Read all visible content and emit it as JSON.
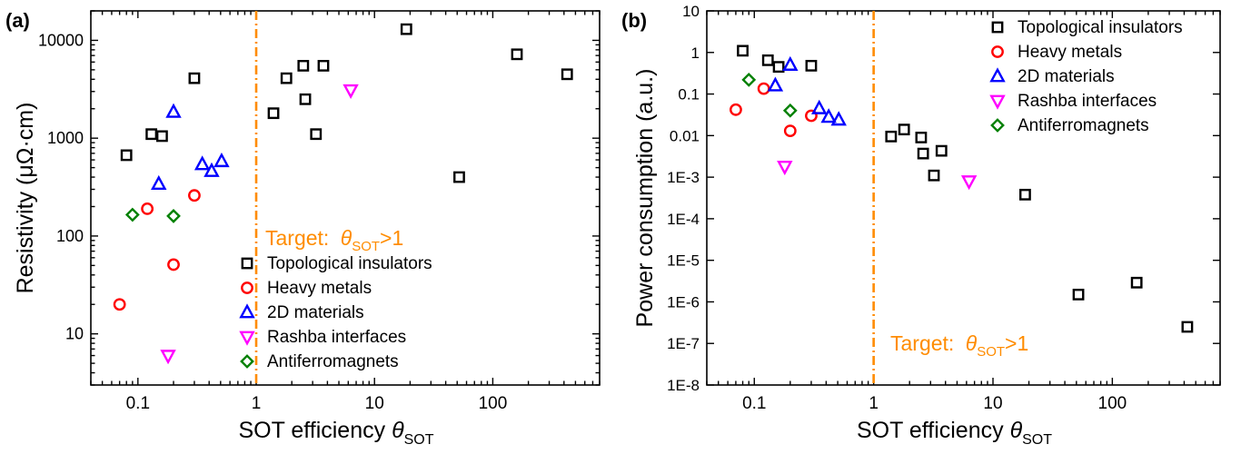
{
  "chart_data": [
    {
      "type": "scatter",
      "panel_label": "(a)",
      "xlabel": "SOT efficiency",
      "xlabel_symbol": "θ",
      "xlabel_subscript": "SOT",
      "ylabel": "Resistivity (μΩ·cm)",
      "xscale": "log",
      "yscale": "log",
      "xlim": [
        0.04,
        800
      ],
      "ylim": [
        3,
        20000
      ],
      "x_ticks": [
        0.1,
        1,
        10,
        100
      ],
      "x_tick_labels": [
        "0.1",
        "1",
        "10",
        "100"
      ],
      "y_ticks": [
        10,
        100,
        1000,
        10000
      ],
      "y_tick_labels": [
        "10",
        "100",
        "1000",
        "10000"
      ],
      "target_x": 1,
      "target_label": "Target: ",
      "target_symbol": "θ",
      "target_subscript": "SOT",
      "target_suffix": ">1",
      "legend_position": "bottom-right",
      "series": [
        {
          "name": "Topological insulators",
          "marker": "square",
          "color": "#000000",
          "points": [
            [
              0.08,
              670
            ],
            [
              0.13,
              1100
            ],
            [
              0.16,
              1050
            ],
            [
              0.3,
              4100
            ],
            [
              1.4,
              1800
            ],
            [
              1.8,
              4100
            ],
            [
              2.5,
              5500
            ],
            [
              2.6,
              2500
            ],
            [
              3.2,
              1100
            ],
            [
              3.7,
              5500
            ],
            [
              18.6,
              13000
            ],
            [
              52,
              400
            ],
            [
              160,
              7200
            ],
            [
              425,
              4500
            ]
          ]
        },
        {
          "name": "Heavy metals",
          "marker": "circle",
          "color": "#ff0000",
          "points": [
            [
              0.07,
              20
            ],
            [
              0.12,
              190
            ],
            [
              0.2,
              51
            ],
            [
              0.3,
              260
            ]
          ]
        },
        {
          "name": "2D materials",
          "marker": "triangle-up",
          "color": "#0000ff",
          "points": [
            [
              0.15,
              340
            ],
            [
              0.2,
              1850
            ],
            [
              0.35,
              540
            ],
            [
              0.42,
              460
            ],
            [
              0.51,
              580
            ]
          ]
        },
        {
          "name": "Rashba interfaces",
          "marker": "triangle-down",
          "color": "#ff00ff",
          "points": [
            [
              0.18,
              6
            ],
            [
              6.3,
              3100
            ]
          ]
        },
        {
          "name": "Antiferromagnets",
          "marker": "diamond",
          "color": "#008000",
          "points": [
            [
              0.09,
              165
            ],
            [
              0.2,
              160
            ]
          ]
        }
      ]
    },
    {
      "type": "scatter",
      "panel_label": "(b)",
      "xlabel": "SOT efficiency",
      "xlabel_symbol": "θ",
      "xlabel_subscript": "SOT",
      "ylabel": "Power consumption (a.u.)",
      "xscale": "log",
      "yscale": "log",
      "xlim": [
        0.04,
        800
      ],
      "ylim": [
        1e-08,
        10
      ],
      "x_ticks": [
        0.1,
        1,
        10,
        100
      ],
      "x_tick_labels": [
        "0.1",
        "1",
        "10",
        "100"
      ],
      "y_ticks": [
        1e-08,
        1e-07,
        1e-06,
        1e-05,
        0.0001,
        0.001,
        0.01,
        0.1,
        1,
        10
      ],
      "y_tick_labels": [
        "1E-8",
        "1E-7",
        "1E-6",
        "1E-5",
        "1E-4",
        "1E-3",
        "0.01",
        "0.1",
        "1",
        "10"
      ],
      "target_x": 1,
      "target_label": "Target: ",
      "target_symbol": "θ",
      "target_subscript": "SOT",
      "target_suffix": ">1",
      "legend_position": "top-right",
      "series": [
        {
          "name": "Topological insulators",
          "marker": "square",
          "color": "#000000",
          "points": [
            [
              0.08,
              1.1
            ],
            [
              0.13,
              0.65
            ],
            [
              0.16,
              0.45
            ],
            [
              0.3,
              0.48
            ],
            [
              1.4,
              0.0095
            ],
            [
              1.8,
              0.014
            ],
            [
              2.5,
              0.009
            ],
            [
              2.6,
              0.0037
            ],
            [
              3.2,
              0.0011
            ],
            [
              3.7,
              0.0043
            ],
            [
              18.6,
              0.00038
            ],
            [
              52,
              1.5e-06
            ],
            [
              160,
              2.9e-06
            ],
            [
              425,
              2.5e-07
            ]
          ]
        },
        {
          "name": "Heavy metals",
          "marker": "circle",
          "color": "#ff0000",
          "points": [
            [
              0.07,
              0.042
            ],
            [
              0.12,
              0.135
            ],
            [
              0.2,
              0.013
            ],
            [
              0.3,
              0.03
            ]
          ]
        },
        {
          "name": "2D materials",
          "marker": "triangle-up",
          "color": "#0000ff",
          "points": [
            [
              0.15,
              0.16
            ],
            [
              0.2,
              0.5
            ],
            [
              0.35,
              0.045
            ],
            [
              0.42,
              0.028
            ],
            [
              0.51,
              0.024
            ]
          ]
        },
        {
          "name": "Rashba interfaces",
          "marker": "triangle-down",
          "color": "#ff00ff",
          "points": [
            [
              0.18,
              0.0018
            ],
            [
              6.3,
              0.0008
            ]
          ]
        },
        {
          "name": "Antiferromagnets",
          "marker": "diamond",
          "color": "#008000",
          "points": [
            [
              0.09,
              0.22
            ],
            [
              0.2,
              0.04
            ]
          ]
        }
      ]
    }
  ],
  "colors": {
    "target_line": "#ff8c00",
    "axis": "#000000"
  }
}
